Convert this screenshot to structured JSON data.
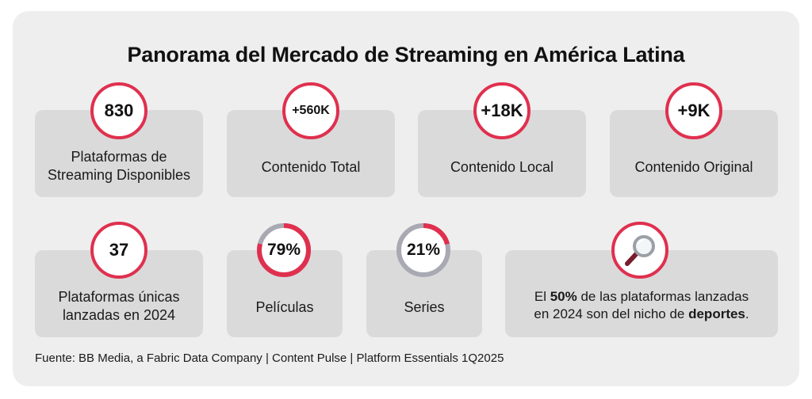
{
  "title": "Panorama del Mercado de Streaming en América Latina",
  "colors": {
    "accent": "#e0304f",
    "track": "#a9a9b3",
    "card": "#dadada",
    "panel": "#eeeeee"
  },
  "stats_top": [
    {
      "value": "830",
      "label_line1": "Plataformas de",
      "label_line2": "Streaming Disponibles"
    },
    {
      "value": "+560K",
      "label": "Contenido Total"
    },
    {
      "value": "+18K",
      "label": "Contenido Local"
    },
    {
      "value": "+9K",
      "label": "Contenido Original"
    }
  ],
  "stats_bottom": [
    {
      "value": "37",
      "label_line1": "Plataformas únicas",
      "label_line2": "lanzadas en 2024"
    },
    {
      "value": "79%",
      "percent": 79,
      "label": "Películas"
    },
    {
      "value": "21%",
      "percent": 21,
      "label": "Series"
    }
  ],
  "note": {
    "icon": "magnifier-icon",
    "pre": "El ",
    "strong1": "50%",
    "mid": " de las plataformas lanzadas",
    "line2_pre": "en 2024 son del nicho de ",
    "strong2": "deportes",
    "post": "."
  },
  "source": "Fuente: BB Media, a Fabric Data Company | Content Pulse | Platform Essentials 1Q2025"
}
